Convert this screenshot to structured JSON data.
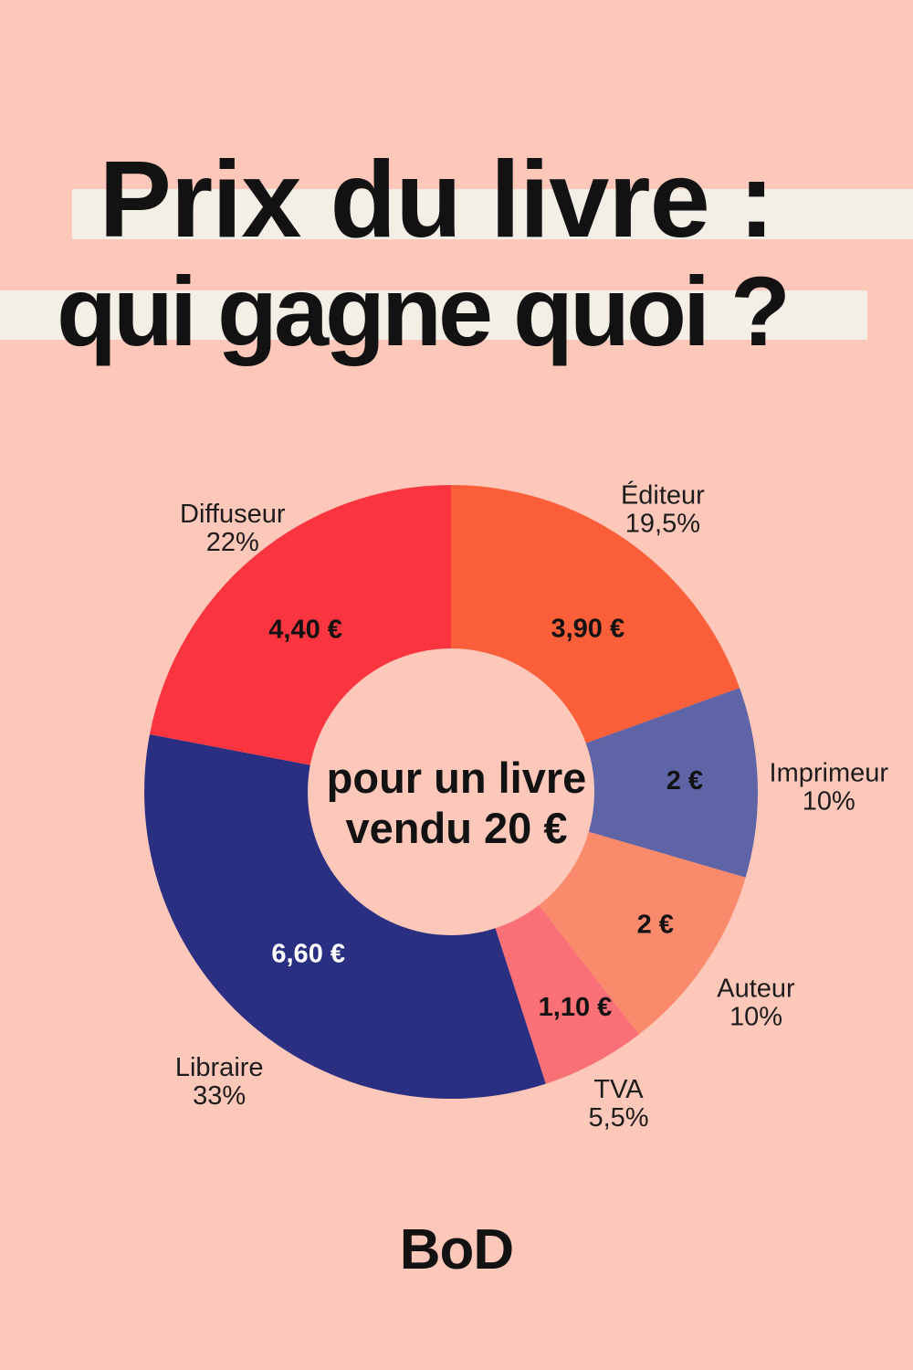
{
  "poster": {
    "background_color": "#FDC8BA",
    "band_color": "#F3EEE6",
    "text_color": "#121212",
    "title_line1": "Prix du livre :",
    "title_line2": "qui gagne quoi ?",
    "logo_text": "BoD"
  },
  "chart_data": {
    "type": "pie",
    "subtype": "donut",
    "title": "Prix du livre : qui gagne quoi ?",
    "direction": "clockwise",
    "start_angle_deg": 0,
    "center_label": [
      "pour un livre",
      "vendu 20 €"
    ],
    "total_value_label": "20 €",
    "segments": [
      {
        "label": "Éditeur",
        "percent": 19.5,
        "percent_label": "19,5%",
        "value": 3.9,
        "value_label": "3,90 €",
        "color": "#FA5F3A",
        "value_text_color": "#121212"
      },
      {
        "label": "Imprimeur",
        "percent": 10,
        "percent_label": "10%",
        "value": 2.0,
        "value_label": "2 €",
        "color": "#5E64A6",
        "value_text_color": "#121212"
      },
      {
        "label": "Auteur",
        "percent": 10,
        "percent_label": "10%",
        "value": 2.0,
        "value_label": "2 €",
        "color": "#FA8A6C",
        "value_text_color": "#121212"
      },
      {
        "label": "TVA",
        "percent": 5.5,
        "percent_label": "5,5%",
        "value": 1.1,
        "value_label": "1,10 €",
        "color": "#F97076",
        "value_text_color": "#121212"
      },
      {
        "label": "Libraire",
        "percent": 33,
        "percent_label": "33%",
        "value": 6.6,
        "value_label": "6,60 €",
        "color": "#2B2F82",
        "value_text_color": "#FFFFFF"
      },
      {
        "label": "Diffuseur",
        "percent": 22,
        "percent_label": "22%",
        "value": 4.4,
        "value_label": "4,40 €",
        "color": "#FA3540",
        "value_text_color": "#121212"
      }
    ]
  }
}
